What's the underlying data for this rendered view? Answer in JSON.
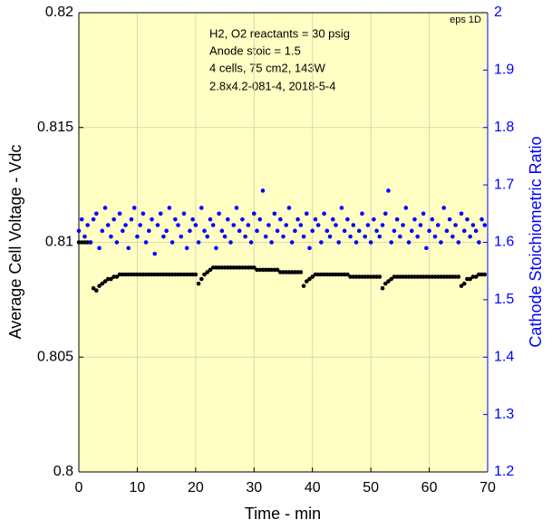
{
  "chart_data": {
    "type": "scatter",
    "x_label": "Time - min",
    "y_label": "Average Cell Voltage - Vdc",
    "y2_label": "Cathode Stoichiometric Ratio",
    "annotations": [
      "H2, O2 reactants = 30 psig",
      "Anode stoic = 1.5",
      "4 cells, 75 cm2, 143W",
      "2.8x4.2-081-4,  2018-5-4"
    ],
    "corner_note": "eps 1D",
    "xlim": [
      0,
      70
    ],
    "xticks": [
      0,
      10,
      20,
      30,
      40,
      50,
      60,
      70
    ],
    "ylim": [
      0.8,
      0.82
    ],
    "yticks": [
      0.8,
      0.805,
      0.81,
      0.815,
      0.82
    ],
    "y2lim": [
      1.2,
      2
    ],
    "y2ticks": [
      1.2,
      1.3,
      1.4,
      1.5,
      1.6,
      1.7,
      1.8,
      1.9,
      2
    ],
    "grid": true,
    "background": "#ffffc4",
    "y2_color": "#0000ff",
    "x": [
      0,
      0.5,
      1,
      1.5,
      2,
      2.5,
      3,
      3.5,
      4,
      4.5,
      5,
      5.5,
      6,
      6.5,
      7,
      7.5,
      8,
      8.5,
      9,
      9.5,
      10,
      10.5,
      11,
      11.5,
      12,
      12.5,
      13,
      13.5,
      14,
      14.5,
      15,
      15.5,
      16,
      16.5,
      17,
      17.5,
      18,
      18.5,
      19,
      19.5,
      20,
      20.5,
      21,
      21.5,
      22,
      22.5,
      23,
      23.5,
      24,
      24.5,
      25,
      25.5,
      26,
      26.5,
      27,
      27.5,
      28,
      28.5,
      29,
      29.5,
      30,
      30.5,
      31,
      31.5,
      32,
      32.5,
      33,
      33.5,
      34,
      34.5,
      35,
      35.5,
      36,
      36.5,
      37,
      37.5,
      38,
      38.5,
      39,
      39.5,
      40,
      40.5,
      41,
      41.5,
      42,
      42.5,
      43,
      43.5,
      44,
      44.5,
      45,
      45.5,
      46,
      46.5,
      47,
      47.5,
      48,
      48.5,
      49,
      49.5,
      50,
      50.5,
      51,
      51.5,
      52,
      52.5,
      53,
      53.5,
      54,
      54.5,
      55,
      55.5,
      56,
      56.5,
      57,
      57.5,
      58,
      58.5,
      59,
      59.5,
      60,
      60.5,
      61,
      61.5,
      62,
      62.5,
      63,
      63.5,
      64,
      64.5,
      65,
      65.5,
      66,
      66.5,
      67,
      67.5,
      68,
      68.5,
      69,
      69.5
    ],
    "series": [
      {
        "color": "#000000",
        "values": [
          0.81,
          0.81,
          0.81,
          0.81,
          0.81,
          0.808,
          0.8079,
          0.8081,
          0.8082,
          0.8083,
          0.8084,
          0.8084,
          0.8085,
          0.8085,
          0.8086,
          0.8086,
          0.8086,
          0.8086,
          0.8086,
          0.8086,
          0.8086,
          0.8086,
          0.8086,
          0.8086,
          0.8086,
          0.8086,
          0.8086,
          0.8086,
          0.8086,
          0.8086,
          0.8086,
          0.8086,
          0.8086,
          0.8086,
          0.8086,
          0.8086,
          0.8086,
          0.8086,
          0.8086,
          0.8086,
          0.8086,
          0.8082,
          0.8084,
          0.8086,
          0.8087,
          0.8088,
          0.8089,
          0.8089,
          0.8089,
          0.8089,
          0.8089,
          0.8089,
          0.8089,
          0.8089,
          0.8089,
          0.8089,
          0.8089,
          0.8089,
          0.8089,
          0.8089,
          0.8089,
          0.8088,
          0.8088,
          0.8088,
          0.8088,
          0.8088,
          0.8088,
          0.8088,
          0.8088,
          0.8087,
          0.8087,
          0.8087,
          0.8087,
          0.8087,
          0.8087,
          0.8087,
          0.8087,
          0.8081,
          0.8083,
          0.8084,
          0.8085,
          0.8086,
          0.8086,
          0.8086,
          0.8086,
          0.8086,
          0.8086,
          0.8086,
          0.8086,
          0.8086,
          0.8086,
          0.8086,
          0.8086,
          0.8085,
          0.8085,
          0.8085,
          0.8085,
          0.8085,
          0.8085,
          0.8085,
          0.8085,
          0.8085,
          0.8085,
          0.8085,
          0.808,
          0.8082,
          0.8083,
          0.8084,
          0.8085,
          0.8085,
          0.8085,
          0.8085,
          0.8085,
          0.8085,
          0.8085,
          0.8085,
          0.8085,
          0.8085,
          0.8085,
          0.8085,
          0.8085,
          0.8085,
          0.8085,
          0.8085,
          0.8085,
          0.8085,
          0.8085,
          0.8085,
          0.8085,
          0.8085,
          0.8085,
          0.8081,
          0.8082,
          0.8084,
          0.8084,
          0.8085,
          0.8085,
          0.8086,
          0.8086,
          0.8086
        ]
      },
      {
        "color": "#0000ff",
        "axis": "y2",
        "values": [
          1.62,
          1.64,
          1.61,
          1.63,
          1.6,
          1.64,
          1.65,
          1.59,
          1.62,
          1.66,
          1.63,
          1.61,
          1.64,
          1.6,
          1.65,
          1.62,
          1.63,
          1.59,
          1.64,
          1.66,
          1.61,
          1.63,
          1.65,
          1.6,
          1.62,
          1.64,
          1.58,
          1.63,
          1.65,
          1.61,
          1.62,
          1.66,
          1.6,
          1.64,
          1.63,
          1.61,
          1.65,
          1.59,
          1.62,
          1.64,
          1.63,
          1.6,
          1.66,
          1.62,
          1.61,
          1.64,
          1.63,
          1.59,
          1.65,
          1.62,
          1.61,
          1.64,
          1.6,
          1.63,
          1.66,
          1.62,
          1.64,
          1.61,
          1.63,
          1.6,
          1.65,
          1.62,
          1.64,
          1.69,
          1.61,
          1.63,
          1.6,
          1.65,
          1.62,
          1.64,
          1.61,
          1.63,
          1.66,
          1.6,
          1.62,
          1.64,
          1.63,
          1.61,
          1.65,
          1.59,
          1.62,
          1.64,
          1.63,
          1.6,
          1.65,
          1.62,
          1.61,
          1.64,
          1.63,
          1.6,
          1.66,
          1.62,
          1.64,
          1.61,
          1.63,
          1.6,
          1.62,
          1.65,
          1.61,
          1.63,
          1.6,
          1.64,
          1.62,
          1.61,
          1.63,
          1.65,
          1.69,
          1.6,
          1.62,
          1.64,
          1.61,
          1.63,
          1.66,
          1.6,
          1.62,
          1.64,
          1.61,
          1.63,
          1.65,
          1.59,
          1.62,
          1.64,
          1.61,
          1.63,
          1.6,
          1.66,
          1.62,
          1.64,
          1.61,
          1.63,
          1.6,
          1.65,
          1.62,
          1.64,
          1.61,
          1.63,
          1.62,
          1.6,
          1.64,
          1.63
        ]
      }
    ]
  }
}
